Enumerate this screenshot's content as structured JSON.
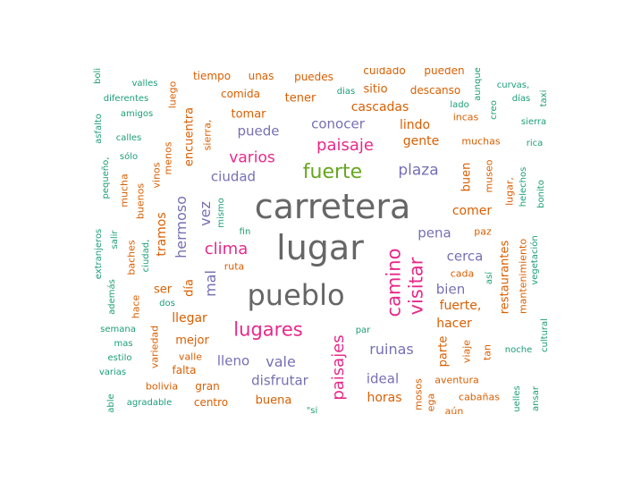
{
  "palette": {
    "gray": "#666666",
    "green": "#66a61e",
    "pink": "#e7298a",
    "purple": "#7570b3",
    "orange": "#d95f02",
    "teal": "#1b9e77"
  },
  "words": [
    {
      "text": "carretera",
      "color": "gray"
    },
    {
      "text": "lugar",
      "color": "gray"
    },
    {
      "text": "pueblo",
      "color": "gray"
    },
    {
      "text": "fuerte",
      "color": "green"
    },
    {
      "text": "camino",
      "color": "pink"
    },
    {
      "text": "visitar",
      "color": "pink"
    },
    {
      "text": "lugares",
      "color": "pink"
    },
    {
      "text": "paisajes",
      "color": "pink"
    },
    {
      "text": "paisaje",
      "color": "pink"
    },
    {
      "text": "clima",
      "color": "pink"
    },
    {
      "text": "varios",
      "color": "pink"
    },
    {
      "text": "plaza",
      "color": "purple"
    },
    {
      "text": "conocer",
      "color": "purple"
    },
    {
      "text": "puede",
      "color": "purple"
    },
    {
      "text": "ciudad",
      "color": "purple"
    },
    {
      "text": "pena",
      "color": "purple"
    },
    {
      "text": "cerca",
      "color": "purple"
    },
    {
      "text": "bien",
      "color": "purple"
    },
    {
      "text": "ruinas",
      "color": "purple"
    },
    {
      "text": "vale",
      "color": "purple"
    },
    {
      "text": "ideal",
      "color": "purple"
    },
    {
      "text": "lleno",
      "color": "purple"
    },
    {
      "text": "disfrutar",
      "color": "purple"
    },
    {
      "text": "vez",
      "color": "purple"
    },
    {
      "text": "hermoso",
      "color": "purple"
    },
    {
      "text": "mal",
      "color": "purple"
    },
    {
      "text": "cascadas",
      "color": "orange"
    },
    {
      "text": "gente",
      "color": "orange"
    },
    {
      "text": "comer",
      "color": "orange"
    },
    {
      "text": "fuerte,",
      "color": "orange"
    },
    {
      "text": "hacer",
      "color": "orange"
    },
    {
      "text": "llegar",
      "color": "orange"
    },
    {
      "text": "mejor",
      "color": "orange"
    },
    {
      "text": "buena",
      "color": "orange"
    },
    {
      "text": "horas",
      "color": "orange"
    },
    {
      "text": "tener",
      "color": "orange"
    },
    {
      "text": "sitio",
      "color": "orange"
    },
    {
      "text": "tomar",
      "color": "orange"
    },
    {
      "text": "lindo",
      "color": "orange"
    },
    {
      "text": "tramos",
      "color": "orange"
    },
    {
      "text": "encuentra",
      "color": "orange"
    },
    {
      "text": "restaurantes",
      "color": "orange"
    },
    {
      "text": "buen",
      "color": "orange"
    },
    {
      "text": "parte",
      "color": "orange"
    },
    {
      "text": "ser",
      "color": "orange"
    },
    {
      "text": "día",
      "color": "orange"
    },
    {
      "text": "puedes",
      "color": "orange"
    },
    {
      "text": "unas",
      "color": "orange"
    },
    {
      "text": "tiempo",
      "color": "orange"
    },
    {
      "text": "cuidado",
      "color": "orange"
    },
    {
      "text": "pueden",
      "color": "orange"
    },
    {
      "text": "comida",
      "color": "orange"
    },
    {
      "text": "descanso",
      "color": "orange"
    },
    {
      "text": "muchas",
      "color": "orange"
    },
    {
      "text": "incas",
      "color": "orange"
    },
    {
      "text": "museo",
      "color": "orange"
    },
    {
      "text": "lugar,",
      "color": "orange"
    },
    {
      "text": "mantenimiento",
      "color": "orange"
    },
    {
      "text": "aventura",
      "color": "orange"
    },
    {
      "text": "cabañas",
      "color": "orange"
    },
    {
      "text": "gran",
      "color": "orange"
    },
    {
      "text": "falta",
      "color": "orange"
    },
    {
      "text": "valle",
      "color": "orange"
    },
    {
      "text": "bolivia",
      "color": "orange"
    },
    {
      "text": "centro",
      "color": "orange"
    },
    {
      "text": "variedad",
      "color": "orange"
    },
    {
      "text": "hace",
      "color": "orange"
    },
    {
      "text": "baches",
      "color": "orange"
    },
    {
      "text": "mucha",
      "color": "orange"
    },
    {
      "text": "buenos",
      "color": "orange"
    },
    {
      "text": "vinos",
      "color": "orange"
    },
    {
      "text": "menos",
      "color": "orange"
    },
    {
      "text": "luego",
      "color": "orange"
    },
    {
      "text": "sierra,",
      "color": "orange"
    },
    {
      "text": "ruta",
      "color": "orange"
    },
    {
      "text": "paz",
      "color": "orange"
    },
    {
      "text": "cada",
      "color": "orange"
    },
    {
      "text": "viaje",
      "color": "orange"
    },
    {
      "text": "tan",
      "color": "orange"
    },
    {
      "text": "mosos",
      "color": "orange"
    },
    {
      "text": "ega",
      "color": "orange"
    },
    {
      "text": "aún",
      "color": "orange"
    },
    {
      "text": "valles",
      "color": "teal"
    },
    {
      "text": "diferentes",
      "color": "teal"
    },
    {
      "text": "amigos",
      "color": "teal"
    },
    {
      "text": "calles",
      "color": "teal"
    },
    {
      "text": "sólo",
      "color": "teal"
    },
    {
      "text": "pequeño,",
      "color": "teal"
    },
    {
      "text": "asfalto",
      "color": "teal"
    },
    {
      "text": "boli",
      "color": "teal"
    },
    {
      "text": "extranjeros",
      "color": "teal"
    },
    {
      "text": "salir",
      "color": "teal"
    },
    {
      "text": "ciudad,",
      "color": "teal"
    },
    {
      "text": "además",
      "color": "teal"
    },
    {
      "text": "semana",
      "color": "teal"
    },
    {
      "text": "mas",
      "color": "teal"
    },
    {
      "text": "estilo",
      "color": "teal"
    },
    {
      "text": "varias",
      "color": "teal"
    },
    {
      "text": "agradable",
      "color": "teal"
    },
    {
      "text": "able",
      "color": "teal"
    },
    {
      "text": "mismo",
      "color": "teal"
    },
    {
      "text": "fin",
      "color": "teal"
    },
    {
      "text": "dos",
      "color": "teal"
    },
    {
      "text": "dias",
      "color": "teal"
    },
    {
      "text": "lado",
      "color": "teal"
    },
    {
      "text": "aunque",
      "color": "teal"
    },
    {
      "text": "creo",
      "color": "teal"
    },
    {
      "text": "curvas,",
      "color": "teal"
    },
    {
      "text": "días",
      "color": "teal"
    },
    {
      "text": "taxi",
      "color": "teal"
    },
    {
      "text": "sierra",
      "color": "teal"
    },
    {
      "text": "rica",
      "color": "teal"
    },
    {
      "text": "helechos",
      "color": "teal"
    },
    {
      "text": "bonito",
      "color": "teal"
    },
    {
      "text": "vegetación",
      "color": "teal"
    },
    {
      "text": "así",
      "color": "teal"
    },
    {
      "text": "noche",
      "color": "teal"
    },
    {
      "text": "cultural",
      "color": "teal"
    },
    {
      "text": "par",
      "color": "teal"
    },
    {
      "text": "uelles",
      "color": "teal"
    },
    {
      "text": "ansar",
      "color": "teal"
    },
    {
      "text": "\"si",
      "color": "teal"
    }
  ]
}
